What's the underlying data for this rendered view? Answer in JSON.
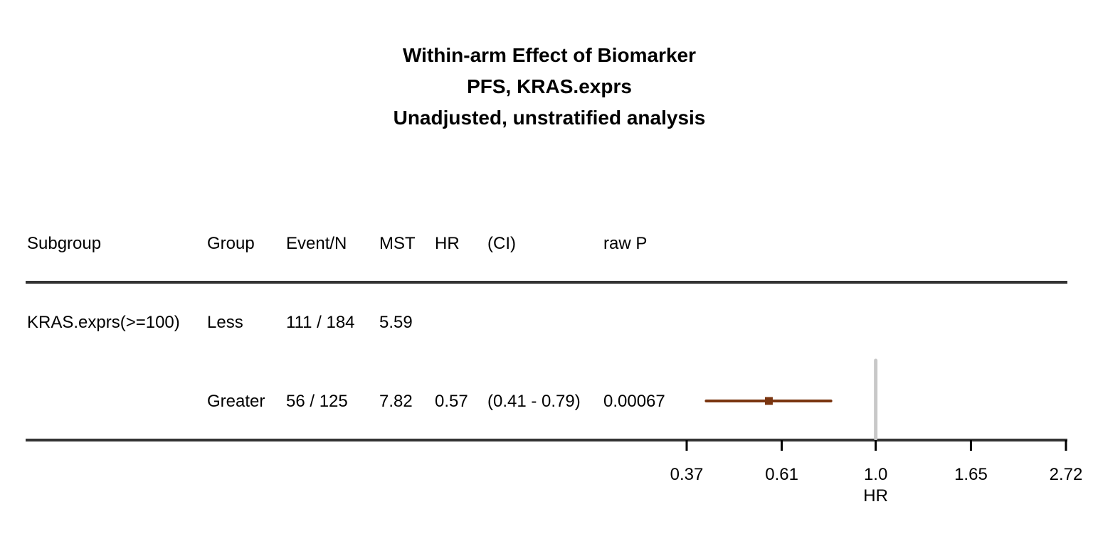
{
  "title_lines": [
    "Within-arm Effect of Biomarker",
    "PFS, KRAS.exprs",
    "Unadjusted, unstratified analysis"
  ],
  "table": {
    "headers": {
      "subgroup": "Subgroup",
      "group": "Group",
      "event_n": "Event/N",
      "mst": "MST",
      "hr": "HR",
      "ci": "(CI)",
      "raw_p": "raw P"
    },
    "rows": [
      {
        "subgroup": "KRAS.exprs(>=100)",
        "group": "Less",
        "event_n": "111 / 184",
        "mst": "5.59",
        "hr": "",
        "ci": "",
        "raw_p": ""
      },
      {
        "subgroup": "",
        "group": "Greater",
        "event_n": "56 / 125",
        "mst": "7.82",
        "hr": "0.57",
        "ci": "(0.41 - 0.79)",
        "raw_p": "0.00067"
      }
    ]
  },
  "chart_data": {
    "type": "forest",
    "x_scale": "log",
    "xlabel": "HR",
    "xlim": [
      0.37,
      2.72
    ],
    "xticks": [
      0.37,
      0.61,
      1.0,
      1.65,
      2.72
    ],
    "xtick_labels": [
      "0.37",
      "0.61",
      "1.0",
      "1.65",
      "2.72"
    ],
    "reference_line": 1.0,
    "points": [
      {
        "group": "Greater",
        "hr": 0.57,
        "ci_low": 0.41,
        "ci_high": 0.79
      }
    ],
    "colors": {
      "estimate": "#7a3510",
      "reference": "#c8c8c8",
      "rule": "#333333"
    }
  }
}
